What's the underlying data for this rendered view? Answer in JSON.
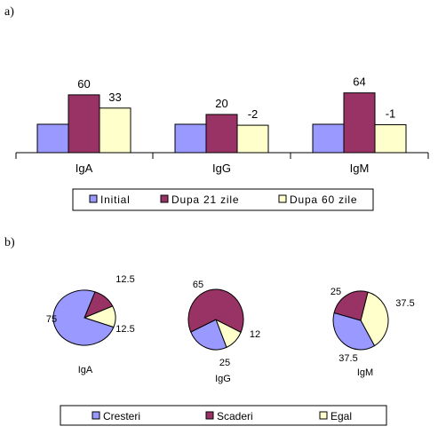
{
  "colors": {
    "series": [
      "#9999ff",
      "#993366",
      "#ffffcc"
    ],
    "outline": "#000000"
  },
  "panels": {
    "a_label": "a)",
    "b_label": "b)"
  },
  "chart_data": [
    {
      "type": "bar",
      "categories": [
        "IgA",
        "IgG",
        "IgM"
      ],
      "series": [
        {
          "name": "Initial",
          "values": [
            0,
            0,
            0
          ]
        },
        {
          "name": "Dupa 21 zile",
          "values": [
            60,
            20,
            64
          ]
        },
        {
          "name": "Dupa 60 zile",
          "values": [
            33,
            -2,
            -1
          ]
        }
      ],
      "data_labels": [
        [
          null,
          null,
          null
        ],
        [
          "60",
          "20",
          "64"
        ],
        [
          "33",
          "-2",
          "-1"
        ]
      ],
      "legend_position": "bottom"
    },
    {
      "type": "pie",
      "pies": [
        {
          "name": "IgA",
          "values": [
            75,
            12.5,
            12.5
          ],
          "labels": [
            "75",
            "12.5",
            "12.5"
          ]
        },
        {
          "name": "IgG",
          "values": [
            25,
            65,
            12
          ],
          "labels": [
            "25",
            "65",
            "12"
          ]
        },
        {
          "name": "IgM",
          "values": [
            37.5,
            25,
            37.5
          ],
          "labels": [
            "37.5",
            "25",
            "37.5"
          ]
        }
      ],
      "legend": [
        "Cresteri",
        "Scaderi",
        "Egal"
      ],
      "legend_position": "bottom"
    }
  ]
}
